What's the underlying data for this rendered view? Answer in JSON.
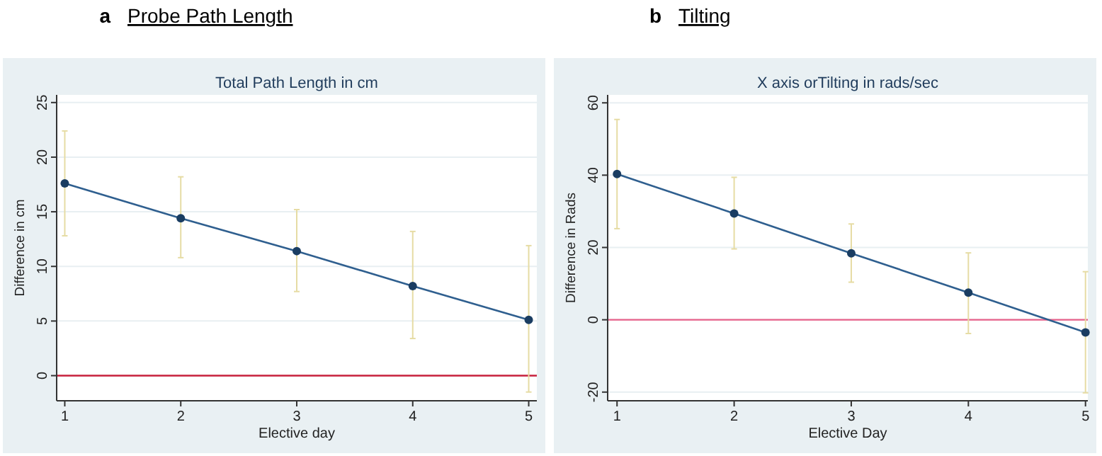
{
  "chart_data": [
    {
      "type": "line",
      "title": "Probe Path Length",
      "subtitle": "Total Path Length in cm",
      "annotations": [
        "a"
      ],
      "xlabel": "Elective day",
      "ylabel": "Difference in cm",
      "x": [
        1,
        2,
        3,
        4,
        5
      ],
      "xlim": [
        0.93,
        5.07
      ],
      "xticks": [
        1,
        2,
        3,
        4,
        5
      ],
      "ylim": [
        -2.3,
        25.7
      ],
      "yticks": [
        0,
        5,
        10,
        15,
        20,
        25
      ],
      "grid": "y",
      "marker": "circle",
      "line_style": "solid",
      "series": [
        {
          "color": "#2f5f8f",
          "values": [
            17.6,
            14.4,
            11.4,
            8.2,
            5.1
          ],
          "errors": [
            [
              12.8,
              22.4
            ],
            [
              10.8,
              18.2
            ],
            [
              7.7,
              15.2
            ],
            [
              3.4,
              13.2
            ],
            [
              -1.5,
              11.9
            ]
          ]
        }
      ],
      "ref_lines": [
        {
          "axis": "y",
          "value": 0,
          "label": null,
          "color": "#c8203c"
        }
      ]
    },
    {
      "type": "line",
      "title": "Tilting",
      "subtitle": "X axis orTilting in rads/sec",
      "annotations": [
        "b"
      ],
      "xlabel": "Elective Day",
      "ylabel": "Difference in Rads",
      "x": [
        1,
        2,
        3,
        4,
        5
      ],
      "xlim": [
        0.92,
        5.02
      ],
      "xticks": [
        1,
        2,
        3,
        4,
        5
      ],
      "ylim": [
        -22.4,
        62.2
      ],
      "yticks": [
        -20,
        0,
        20,
        40,
        60
      ],
      "grid": "y",
      "marker": "circle",
      "line_style": "solid",
      "series": [
        {
          "color": "#2f5f8f",
          "values": [
            40.3,
            29.4,
            18.4,
            7.5,
            -3.5
          ],
          "errors": [
            [
              25.2,
              55.4
            ],
            [
              19.6,
              39.4
            ],
            [
              10.4,
              26.5
            ],
            [
              -3.8,
              18.5
            ],
            [
              -20.2,
              13.3
            ]
          ]
        }
      ],
      "ref_lines": [
        {
          "axis": "y",
          "value": 0,
          "label": null,
          "color": "#e8608a"
        }
      ]
    }
  ]
}
